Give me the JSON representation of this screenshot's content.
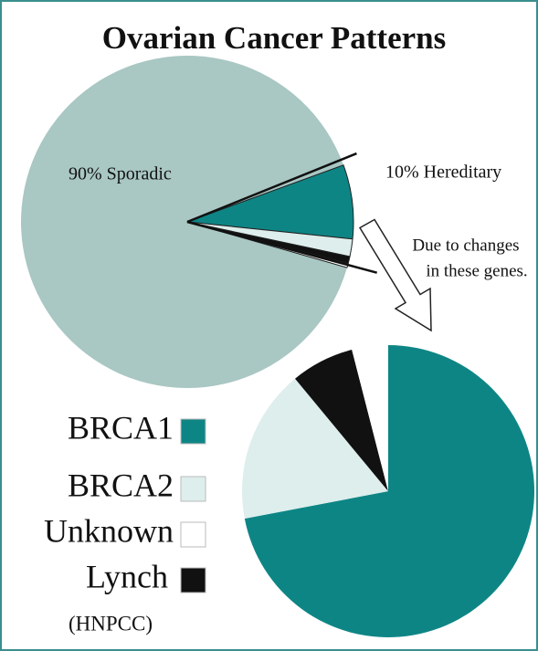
{
  "chart_data": [
    {
      "type": "pie",
      "title": "Ovarian Cancer Patterns",
      "categories": [
        "Sporadic",
        "Hereditary"
      ],
      "values": [
        90,
        10
      ],
      "value_labels": [
        "90% Sporadic",
        "10% Hereditary"
      ],
      "colors": [
        "#a9c7c3",
        "#0e8585"
      ],
      "annotation": [
        "Due to changes",
        "in these genes."
      ]
    },
    {
      "type": "pie",
      "categories": [
        "BRCA1",
        "BRCA2",
        "Lynch",
        "Unknown"
      ],
      "values": [
        72,
        17,
        7,
        4
      ],
      "colors": [
        "#0e8585",
        "#ddeeec",
        "#111111",
        "#ffffff"
      ],
      "legend_note": "(HNPCC)"
    }
  ]
}
